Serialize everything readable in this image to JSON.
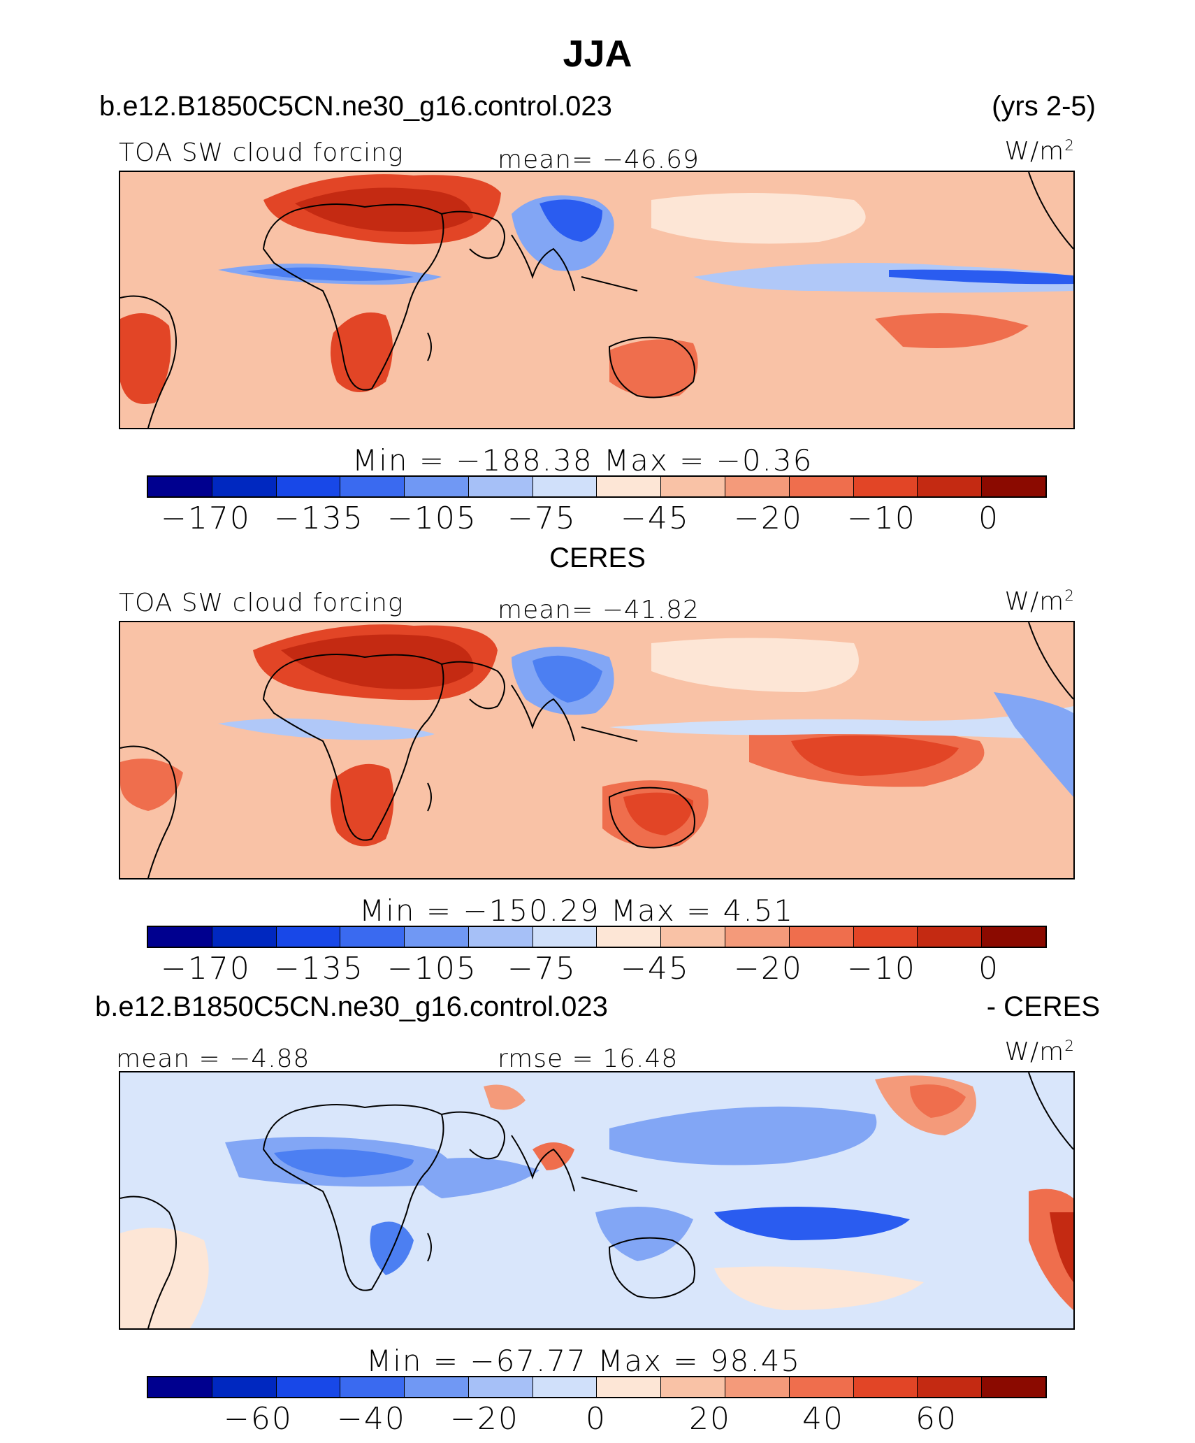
{
  "figure": {
    "title": "JJA"
  },
  "panels": [
    {
      "header_left": "b.e12.B1850C5CN.ne30_g16.control.023",
      "header_right": "(yrs 2-5)",
      "variable": "TOA SW cloud forcing",
      "stat_center": "mean=  −46.69",
      "units": "W/m",
      "units_sup": "2",
      "minmax": "Min  =  −188.38  Max  =    −0.36",
      "cbar_ticks": [
        "−170",
        "−135",
        "−105",
        "−75",
        "−45",
        "−20",
        "−10",
        "0"
      ]
    },
    {
      "header_center": "CERES",
      "variable": "TOA SW cloud forcing",
      "stat_center": "mean=  −41.82",
      "units": "W/m",
      "units_sup": "2",
      "minmax": "Min  =  −150.29  Max  =     4.51",
      "cbar_ticks": [
        "−170",
        "−135",
        "−105",
        "−75",
        "−45",
        "−20",
        "−10",
        "0"
      ]
    },
    {
      "header_left": "b.e12.B1850C5CN.ne30_g16.control.023",
      "header_right": "- CERES",
      "stat_left": "mean  =   −4.88",
      "stat_center": "rmse  =   16.48",
      "units": "W/m",
      "units_sup": "2",
      "minmax": "Min  =  −67.77  Max  =   98.45",
      "cbar_ticks": [
        "−60",
        "−40",
        "−20",
        "0",
        "20",
        "40",
        "60"
      ]
    }
  ],
  "colors": {
    "abs_scale": [
      "#00008f",
      "#0020b8",
      "#0038e0",
      "#2a5cf0",
      "#4c7ff2",
      "#82a6f5",
      "#b0c8f8",
      "#d9e6fb",
      "#fde6d6",
      "#f9c2a6",
      "#f49a7a",
      "#ef6e4d",
      "#e24526",
      "#c42a12",
      "#a01a0a",
      "#800000"
    ],
    "diff_scale": [
      "#00008f",
      "#0020b8",
      "#0038e0",
      "#2a5cf0",
      "#4c7ff2",
      "#82a6f5",
      "#b0c8f8",
      "#d9e6fb",
      "#fde6d6",
      "#f9c2a6",
      "#f49a7a",
      "#ef6e4d",
      "#e24526",
      "#c42a12",
      "#a01a0a",
      "#800000"
    ],
    "coastline": "#000000"
  }
}
